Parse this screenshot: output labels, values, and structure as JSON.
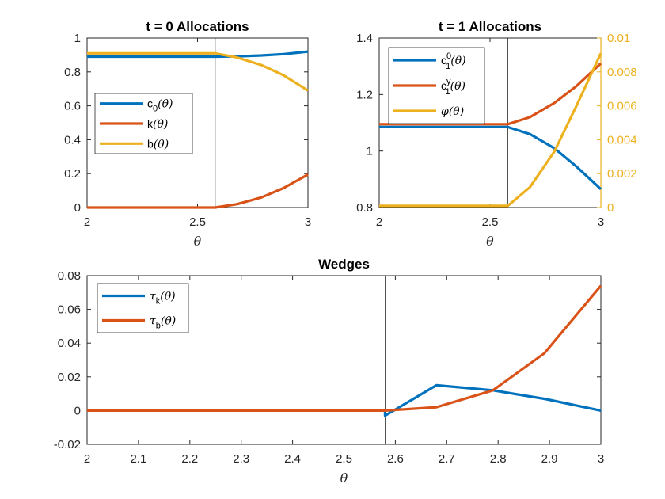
{
  "chart_data": [
    {
      "type": "line",
      "title": "t = 0 Allocations",
      "xlabel": "θ",
      "ylabel": "",
      "xlim": [
        2,
        3
      ],
      "ylim": [
        0,
        1
      ],
      "x_ticks": [
        "2",
        "2.5",
        "3"
      ],
      "y_ticks": [
        "0",
        "0.2",
        "0.4",
        "0.6",
        "0.8",
        "1"
      ],
      "vertical_line_x": 2.58,
      "legend": "left",
      "series": [
        {
          "name": "c0(θ)",
          "label_main": "c",
          "label_sub": "0",
          "label_arg": "(θ)",
          "color": "#0072BD",
          "x": [
            2,
            2.58,
            2.68,
            2.79,
            2.89,
            3
          ],
          "y": [
            0.89,
            0.89,
            0.892,
            0.897,
            0.905,
            0.92
          ]
        },
        {
          "name": "k(θ)",
          "label_main": "k",
          "label_sub": "",
          "label_arg": "(θ)",
          "color": "#D95319",
          "x": [
            2,
            2.58,
            2.68,
            2.79,
            2.89,
            3
          ],
          "y": [
            0,
            0,
            0.02,
            0.06,
            0.115,
            0.195
          ]
        },
        {
          "name": "b(θ)",
          "label_main": "b",
          "label_sub": "",
          "label_arg": "(θ)",
          "color": "#EDB120",
          "x": [
            2,
            2.58,
            2.68,
            2.79,
            2.89,
            3
          ],
          "y": [
            0.91,
            0.91,
            0.885,
            0.84,
            0.78,
            0.69
          ]
        }
      ]
    },
    {
      "type": "line",
      "title": "t = 1 Allocations",
      "xlabel": "θ",
      "ylabel": "",
      "xlim": [
        2,
        3
      ],
      "ylim": [
        0.8,
        1.4
      ],
      "ylim_right": [
        0,
        0.01
      ],
      "x_ticks": [
        "2",
        "2.5",
        "3"
      ],
      "y_ticks": [
        "0.8",
        "1",
        "1.2",
        "1.4"
      ],
      "y_ticks_right": [
        "0",
        "0.002",
        "0.004",
        "0.006",
        "0.008",
        "0.01"
      ],
      "vertical_line_x": 2.58,
      "legend": "top-left",
      "series": [
        {
          "name": "c10(θ)",
          "label_main": "c",
          "label_sub": "1",
          "label_sup": "0",
          "label_arg": "(θ)",
          "color": "#0072BD",
          "axis": "left",
          "x": [
            2,
            2.58,
            2.68,
            2.79,
            2.89,
            3
          ],
          "y": [
            1.085,
            1.085,
            1.06,
            1.01,
            0.945,
            0.865
          ]
        },
        {
          "name": "c1y(θ)",
          "label_main": "c",
          "label_sub": "1",
          "label_sup": "y",
          "label_arg": "(θ)",
          "color": "#D95319",
          "axis": "left",
          "x": [
            2,
            2.58,
            2.68,
            2.79,
            2.89,
            3
          ],
          "y": [
            1.095,
            1.095,
            1.12,
            1.17,
            1.23,
            1.31
          ]
        },
        {
          "name": "φ(θ)",
          "label_main": "φ",
          "label_sub": "",
          "label_arg": "(θ)",
          "color": "#EDB120",
          "axis": "right",
          "x": [
            2,
            2.58,
            2.68,
            2.79,
            2.89,
            3
          ],
          "y": [
            0.0001,
            0.0001,
            0.0012,
            0.0033,
            0.006,
            0.0091
          ]
        }
      ]
    },
    {
      "type": "line",
      "title": "Wedges",
      "xlabel": "θ",
      "ylabel": "",
      "xlim": [
        2,
        3
      ],
      "ylim": [
        -0.02,
        0.08
      ],
      "x_ticks": [
        "2",
        "2.1",
        "2.2",
        "2.3",
        "2.4",
        "2.5",
        "2.6",
        "2.7",
        "2.8",
        "2.9",
        "3"
      ],
      "y_ticks": [
        "-0.02",
        "0",
        "0.02",
        "0.04",
        "0.06",
        "0.08"
      ],
      "vertical_line_x": 2.58,
      "legend": "top-left",
      "series": [
        {
          "name": "τk(θ)",
          "label_main": "τ",
          "label_sub": "k",
          "label_arg": "(θ)",
          "color": "#0072BD",
          "x": [
            2,
            2.58,
            2.58,
            2.68,
            2.79,
            2.89,
            3
          ],
          "y": [
            0,
            0,
            -0.003,
            0.015,
            0.012,
            0.007,
            0
          ]
        },
        {
          "name": "τb(θ)",
          "label_main": "τ",
          "label_sub": "b",
          "label_arg": "(θ)",
          "color": "#D95319",
          "x": [
            2,
            2.58,
            2.68,
            2.79,
            2.89,
            3
          ],
          "y": [
            0,
            0,
            0.002,
            0.012,
            0.034,
            0.074
          ]
        }
      ]
    }
  ]
}
